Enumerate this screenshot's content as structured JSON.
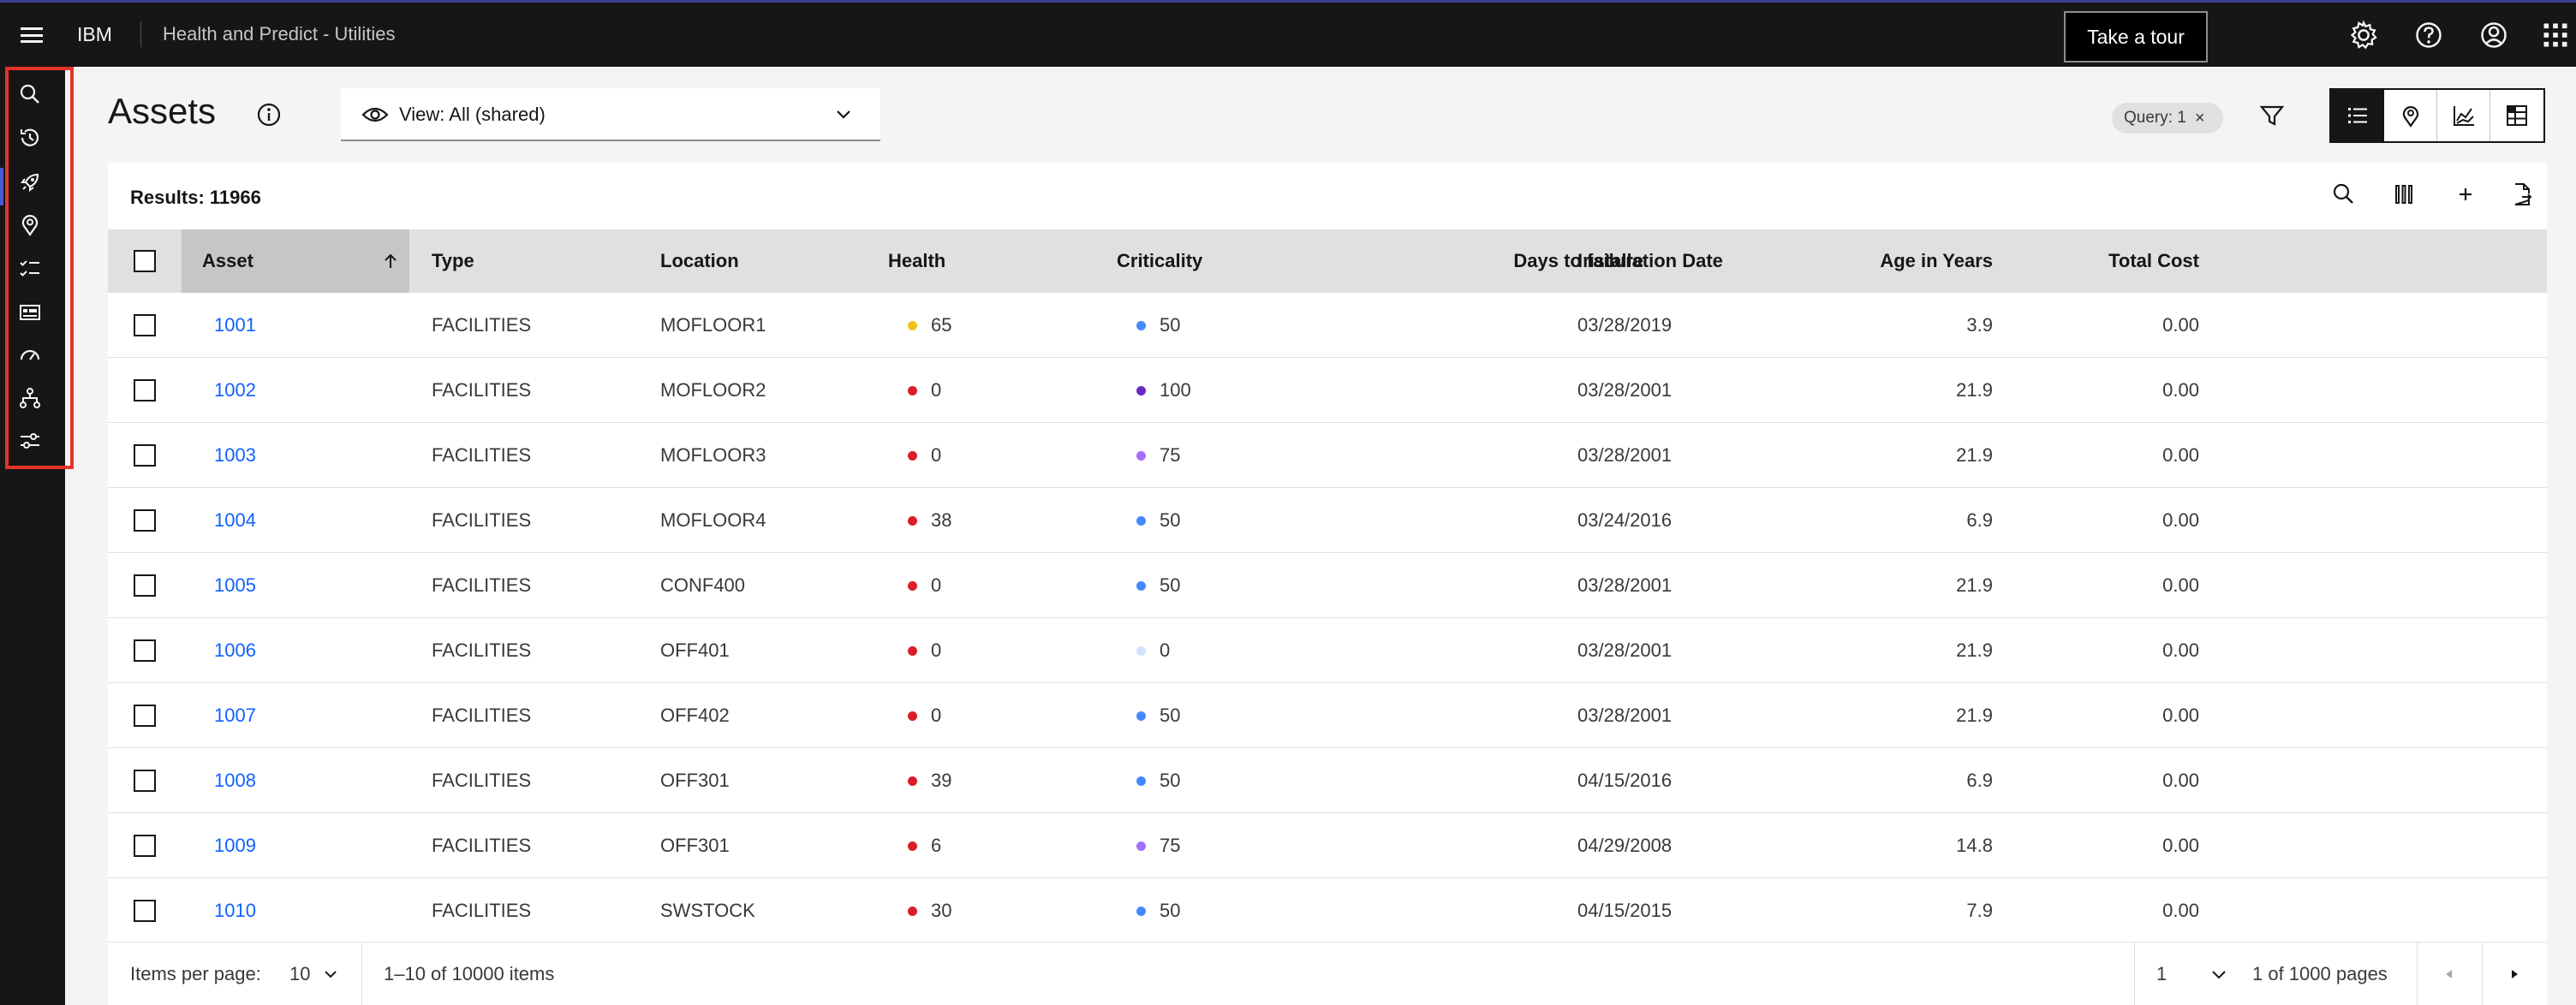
{
  "header": {
    "brand": "IBM",
    "app_title": "Health and Predict - Utilities",
    "tour_label": "Take a tour",
    "icons": [
      "menu-icon",
      "settings-icon",
      "help-icon",
      "user-icon",
      "app-switcher-icon"
    ]
  },
  "rail": {
    "items": [
      "search-icon",
      "history-icon",
      "rocket-icon",
      "location-icon",
      "checklist-icon",
      "dashboard-icon",
      "gauge-icon",
      "hierarchy-icon",
      "sliders-icon"
    ],
    "highlight_color": "#e5332a"
  },
  "page": {
    "title": "Assets",
    "view_label": "View: All (shared)",
    "query_tag": "Query: 1"
  },
  "table": {
    "results_label": "Results: 11966",
    "columns": [
      "Asset",
      "Type",
      "Location",
      "Health",
      "Criticality",
      "Days to failure",
      "Installation Date",
      "Age in Years",
      "Total Cost"
    ],
    "rows": [
      {
        "asset": "1001",
        "type": "FACILITIES",
        "location": "MOFLOOR1",
        "health": "65",
        "health_color": "#f1c21b",
        "criticality": "50",
        "crit_color": "#4589ff",
        "days": "",
        "install": "03/28/2019",
        "age": "3.9",
        "cost": "0.00"
      },
      {
        "asset": "1002",
        "type": "FACILITIES",
        "location": "MOFLOOR2",
        "health": "0",
        "health_color": "#da1e28",
        "criticality": "100",
        "crit_color": "#6929c4",
        "days": "",
        "install": "03/28/2001",
        "age": "21.9",
        "cost": "0.00"
      },
      {
        "asset": "1003",
        "type": "FACILITIES",
        "location": "MOFLOOR3",
        "health": "0",
        "health_color": "#da1e28",
        "criticality": "75",
        "crit_color": "#a56eff",
        "days": "",
        "install": "03/28/2001",
        "age": "21.9",
        "cost": "0.00"
      },
      {
        "asset": "1004",
        "type": "FACILITIES",
        "location": "MOFLOOR4",
        "health": "38",
        "health_color": "#da1e28",
        "criticality": "50",
        "crit_color": "#4589ff",
        "days": "",
        "install": "03/24/2016",
        "age": "6.9",
        "cost": "0.00"
      },
      {
        "asset": "1005",
        "type": "FACILITIES",
        "location": "CONF400",
        "health": "0",
        "health_color": "#da1e28",
        "criticality": "50",
        "crit_color": "#4589ff",
        "days": "",
        "install": "03/28/2001",
        "age": "21.9",
        "cost": "0.00"
      },
      {
        "asset": "1006",
        "type": "FACILITIES",
        "location": "OFF401",
        "health": "0",
        "health_color": "#da1e28",
        "criticality": "0",
        "crit_color": "#d0e2ff",
        "days": "",
        "install": "03/28/2001",
        "age": "21.9",
        "cost": "0.00"
      },
      {
        "asset": "1007",
        "type": "FACILITIES",
        "location": "OFF402",
        "health": "0",
        "health_color": "#da1e28",
        "criticality": "50",
        "crit_color": "#4589ff",
        "days": "",
        "install": "03/28/2001",
        "age": "21.9",
        "cost": "0.00"
      },
      {
        "asset": "1008",
        "type": "FACILITIES",
        "location": "OFF301",
        "health": "39",
        "health_color": "#da1e28",
        "criticality": "50",
        "crit_color": "#4589ff",
        "days": "",
        "install": "04/15/2016",
        "age": "6.9",
        "cost": "0.00"
      },
      {
        "asset": "1009",
        "type": "FACILITIES",
        "location": "OFF301",
        "health": "6",
        "health_color": "#da1e28",
        "criticality": "75",
        "crit_color": "#a56eff",
        "days": "",
        "install": "04/29/2008",
        "age": "14.8",
        "cost": "0.00"
      },
      {
        "asset": "1010",
        "type": "FACILITIES",
        "location": "SWSTOCK",
        "health": "30",
        "health_color": "#da1e28",
        "criticality": "50",
        "crit_color": "#4589ff",
        "days": "",
        "install": "04/15/2015",
        "age": "7.9",
        "cost": "0.00"
      }
    ]
  },
  "pagination": {
    "items_per_page_label": "Items per page:",
    "items_per_page": "10",
    "range_label": "1–10 of 10000 items",
    "page": "1",
    "pages_label": "1 of 1000 pages"
  }
}
